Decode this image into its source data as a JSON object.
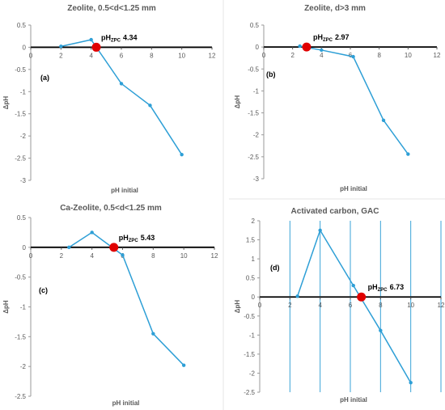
{
  "chart_data": [
    {
      "type": "line",
      "title": "Zeolite, 0.5<d<1.25 mm",
      "panel_label": "(a)",
      "xlabel": "pH initial",
      "ylabel": "ΔpH",
      "xlim": [
        0,
        12
      ],
      "ylim": [
        -3,
        0.5
      ],
      "xticks": [
        "0",
        "2",
        "4",
        "6",
        "8",
        "10",
        "12"
      ],
      "yticks": [
        "0.5",
        "0",
        "-0.5",
        "-1",
        "-1.5",
        "-2",
        "-2.5",
        "-3"
      ],
      "vertical_grid": false,
      "series_color": "#2e9fd6",
      "x": [
        2.0,
        4.0,
        6.0,
        7.9,
        10.0
      ],
      "y": [
        0.02,
        0.17,
        -0.82,
        -1.31,
        -2.42
      ],
      "pzc": {
        "x": 4.34,
        "y": 0.0,
        "label": "pH",
        "subscript": "ZPC",
        "value": "4.34",
        "color": "#e00000"
      }
    },
    {
      "type": "line",
      "title": "Zeolite, d>3 mm",
      "panel_label": "(b)",
      "xlabel": "pH initial",
      "ylabel": "ΔpH",
      "xlim": [
        0,
        12
      ],
      "ylim": [
        -3,
        0.5
      ],
      "xticks": [
        "0",
        "2",
        "4",
        "6",
        "8",
        "10",
        "12"
      ],
      "yticks": [
        "0.5",
        "0",
        "-0.5",
        "-1",
        "-1.5",
        "-2",
        "-2.5",
        "-3"
      ],
      "vertical_grid": false,
      "series_color": "#2e9fd6",
      "x": [
        2.5,
        4.0,
        6.2,
        8.3,
        10.0
      ],
      "y": [
        0.02,
        -0.07,
        -0.22,
        -1.67,
        -2.44
      ],
      "pzc": {
        "x": 2.97,
        "y": 0.0,
        "label": "pH",
        "subscript": "ZPC",
        "value": "2.97",
        "color": "#e00000"
      }
    },
    {
      "type": "line",
      "title": "Ca-Zeolite, 0.5<d<1.25 mm",
      "panel_label": "(c)",
      "xlabel": "pH initial",
      "ylabel": "ΔpH",
      "xlim": [
        0,
        12
      ],
      "ylim": [
        -2.5,
        0.5
      ],
      "xticks": [
        "0",
        "2",
        "4",
        "6",
        "8",
        "10",
        "12"
      ],
      "yticks": [
        "0.5",
        "0",
        "-0.5",
        "-1",
        "-1.5",
        "-2",
        "-2.5"
      ],
      "vertical_grid": false,
      "series_color": "#2e9fd6",
      "x": [
        2.5,
        4.0,
        6.0,
        8.0,
        10.0
      ],
      "y": [
        0.0,
        0.25,
        -0.13,
        -1.45,
        -1.98
      ],
      "pzc": {
        "x": 5.43,
        "y": 0.0,
        "label": "pH",
        "subscript": "ZPC",
        "value": "5.43",
        "color": "#e00000"
      }
    },
    {
      "type": "line",
      "title": "Activated carbon, GAC",
      "panel_label": "(d)",
      "xlabel": "pH initial",
      "ylabel": "ΔpH",
      "xlim": [
        0,
        12
      ],
      "ylim": [
        -2.5,
        2
      ],
      "xticks": [
        "0",
        "2",
        "4",
        "6",
        "8",
        "10",
        "12"
      ],
      "yticks": [
        "2",
        "1.5",
        "1",
        "0.5",
        "0",
        "-0.5",
        "-1",
        "-1.5",
        "-2",
        "-2.5"
      ],
      "vertical_grid": true,
      "series_color": "#2e9fd6",
      "x": [
        2.5,
        4.0,
        6.2,
        8.0,
        10.0
      ],
      "y": [
        0.02,
        1.75,
        0.3,
        -0.88,
        -2.25
      ],
      "pzc": {
        "x": 6.73,
        "y": 0.0,
        "label": "pH",
        "subscript": "ZPC",
        "value": "6.73",
        "color": "#e00000"
      }
    }
  ]
}
